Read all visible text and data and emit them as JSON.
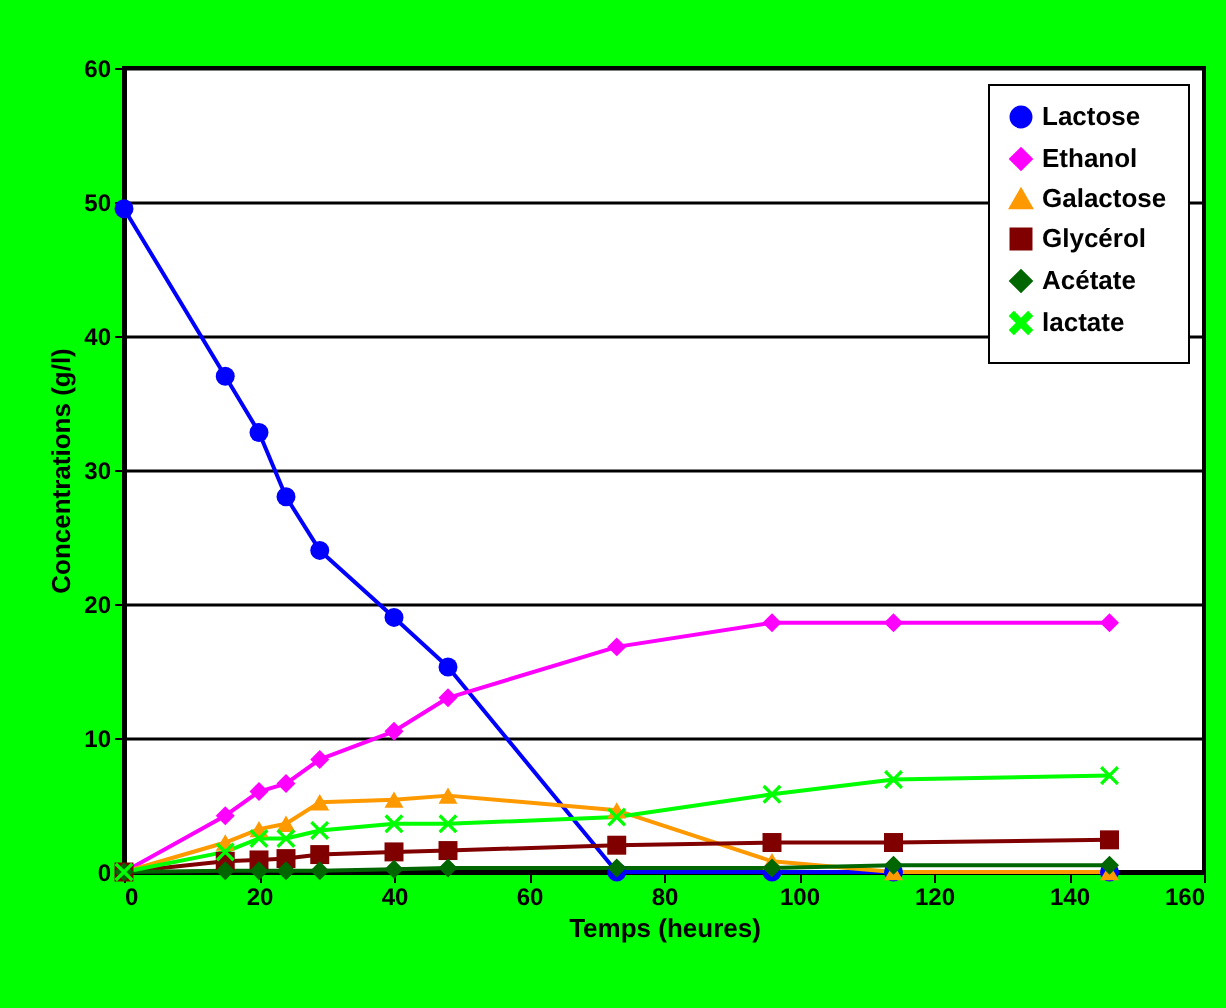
{
  "chart_data": {
    "type": "line",
    "xlabel": "Temps (heures)",
    "ylabel": "Concentrations (g/l)",
    "x": [
      0,
      15,
      20,
      24,
      29,
      40,
      48,
      73,
      96,
      114,
      146
    ],
    "series": [
      {
        "name": "Lactose",
        "color": "#0000ff",
        "marker": "circle",
        "values": [
          49.5,
          37,
          32.8,
          28,
          24,
          19,
          15.3,
          0,
          0,
          0,
          0
        ]
      },
      {
        "name": "Ethanol",
        "color": "#ff00ff",
        "marker": "diamond",
        "values": [
          0,
          4.2,
          6,
          6.6,
          8.4,
          10.5,
          13,
          16.8,
          18.6,
          18.6,
          18.6
        ]
      },
      {
        "name": "Galactose",
        "color": "#ff9900",
        "marker": "triangle",
        "values": [
          0,
          2.2,
          3.2,
          3.6,
          5.2,
          5.4,
          5.7,
          4.6,
          0.8,
          0,
          0
        ]
      },
      {
        "name": "Glycérol",
        "color": "#800000",
        "marker": "square",
        "values": [
          0,
          0.8,
          0.9,
          1.0,
          1.3,
          1.5,
          1.6,
          2,
          2.2,
          2.2,
          2.4
        ]
      },
      {
        "name": "Acétate",
        "color": "#006600",
        "marker": "diamond",
        "values": [
          0,
          0.1,
          0.1,
          0.1,
          0.1,
          0.2,
          0.3,
          0.3,
          0.3,
          0.5,
          0.5
        ]
      },
      {
        "name": "lactate",
        "color": "#00ff00",
        "marker": "cross",
        "values": [
          0,
          1.5,
          2.5,
          2.5,
          3.1,
          3.6,
          3.6,
          4.1,
          5.8,
          6.9,
          7.2
        ]
      }
    ],
    "xlim": [
      0,
      160
    ],
    "xticks": [
      0,
      20,
      40,
      60,
      80,
      100,
      120,
      140,
      160
    ],
    "ylim": [
      0,
      60
    ],
    "yticks": [
      0,
      10,
      20,
      30,
      40,
      50,
      60
    ],
    "grid": "y",
    "legend": "top right",
    "line_style": "solid"
  }
}
